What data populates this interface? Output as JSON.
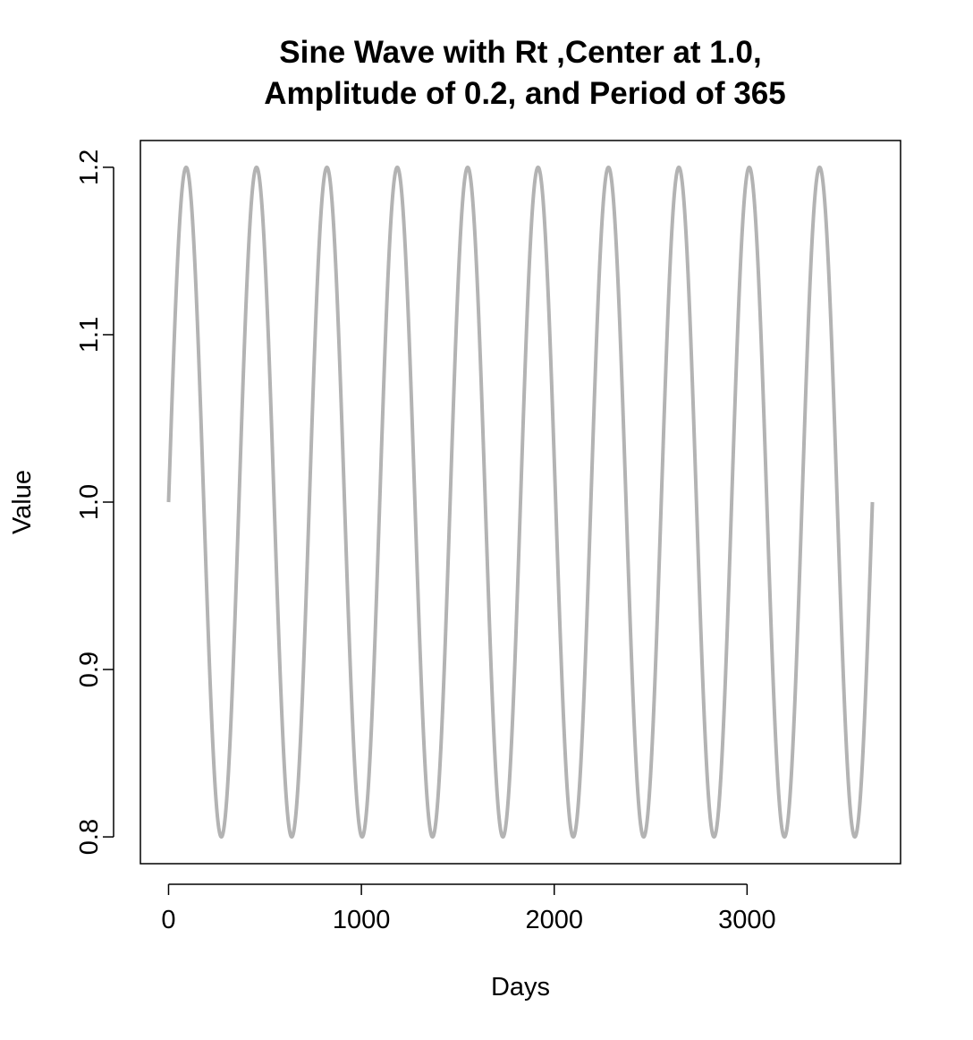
{
  "chart_data": {
    "type": "line",
    "title": "Sine Wave with Rt ,Center at 1.0,\nAmplitude of 0.2, and Period of 365",
    "title_lines": [
      "Sine Wave with Rt ,Center at 1.0,",
      "Amplitude of 0.2, and Period of 365"
    ],
    "xlabel": "Days",
    "ylabel": "Value",
    "xlim": [
      -146,
      3796
    ],
    "ylim": [
      0.784,
      1.216
    ],
    "x_ticks": [
      0,
      1000,
      2000,
      3000
    ],
    "y_ticks": [
      0.8,
      0.9,
      1.0,
      1.1,
      1.2
    ],
    "x_tick_labels": [
      "0",
      "1000",
      "2000",
      "3000"
    ],
    "y_tick_labels": [
      "0.8",
      "0.9",
      "1.0",
      "1.1",
      "1.2"
    ],
    "grid": false,
    "legend": "none",
    "series": [
      {
        "function": "1.0 + 0.2*sin(2*pi*x/365)",
        "center": 1.0,
        "amplitude": 0.2,
        "period": 365,
        "x_range": [
          0,
          3650
        ],
        "color": "#b3b3b3"
      }
    ]
  }
}
